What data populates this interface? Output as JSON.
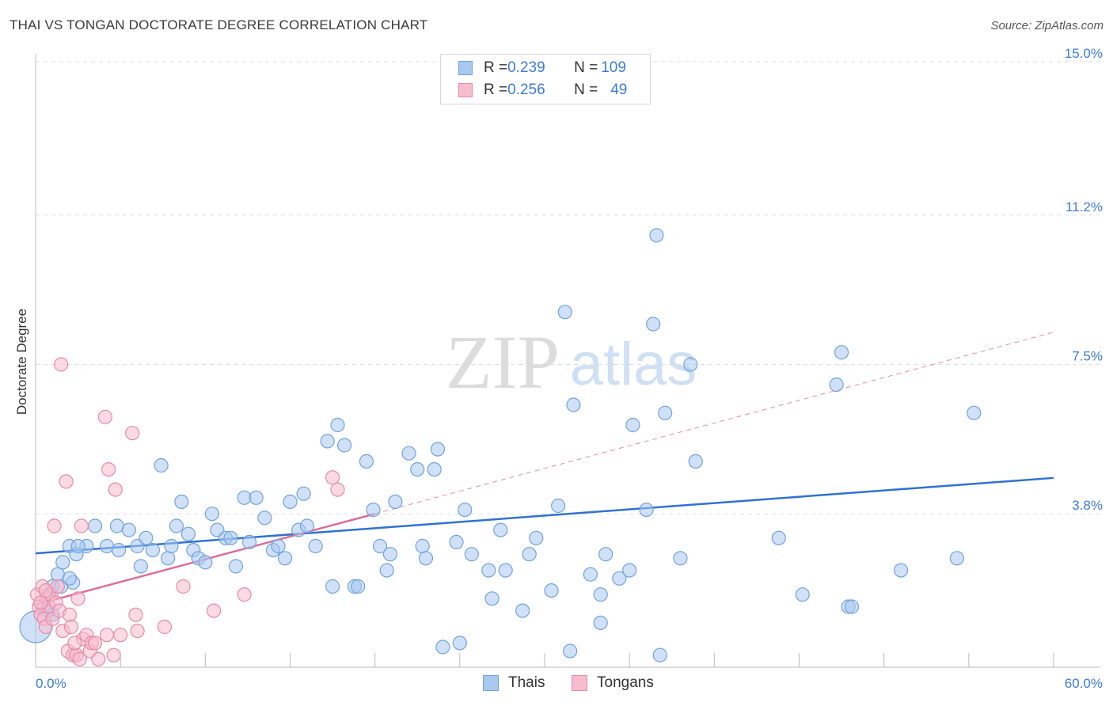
{
  "title": "THAI VS TONGAN DOCTORATE DEGREE CORRELATION CHART",
  "source": "Source: ZipAtlas.com",
  "watermark": {
    "zip": "ZIP",
    "atlas": "atlas"
  },
  "legend_top": [
    {
      "r_label": "R = ",
      "r_value": "0.239",
      "n_label": "N = ",
      "n_value": "109",
      "color": "#a9c8f0",
      "border": "#6fa3e0"
    },
    {
      "r_label": "R = ",
      "r_value": "0.256",
      "n_label": "N = ",
      "n_value": "49",
      "color": "#f7bccd",
      "border": "#e88aa6"
    }
  ],
  "legend_bottom": [
    {
      "label": "Thais",
      "color": "#a9c8f0",
      "border": "#6fa3e0"
    },
    {
      "label": "Tongans",
      "color": "#f7bccd",
      "border": "#e88aa6"
    }
  ],
  "chart_data": {
    "type": "scatter",
    "title": "THAI VS TONGAN DOCTORATE DEGREE CORRELATION CHART",
    "xlabel": "",
    "ylabel": "Doctorate Degree",
    "xlim": [
      0,
      60
    ],
    "ylim": [
      0,
      15
    ],
    "x_tick_labels": [
      "0.0%",
      "60.0%"
    ],
    "y_ticks": [
      3.8,
      7.5,
      11.2,
      15.0
    ],
    "y_tick_labels": [
      "3.8%",
      "7.5%",
      "11.2%",
      "15.0%"
    ],
    "grid": true,
    "legend_position": "top-center",
    "series": [
      {
        "name": "Thais",
        "color": "#6fa3e0",
        "fill": "#a9c8f0",
        "trend": {
          "x": [
            0,
            60
          ],
          "y": [
            2.82,
            4.69
          ]
        },
        "points": [
          [
            0.0,
            1.0
          ],
          [
            0.5,
            1.5
          ],
          [
            0.8,
            1.8
          ],
          [
            1.0,
            2.0
          ],
          [
            1.3,
            2.3
          ],
          [
            1.6,
            2.6
          ],
          [
            2.0,
            3.0
          ],
          [
            2.2,
            2.1
          ],
          [
            2.4,
            2.8
          ],
          [
            3.0,
            3.0
          ],
          [
            3.5,
            3.5
          ],
          [
            4.2,
            3.0
          ],
          [
            4.8,
            3.5
          ],
          [
            4.9,
            2.9
          ],
          [
            5.5,
            3.4
          ],
          [
            6.0,
            3.0
          ],
          [
            6.2,
            2.5
          ],
          [
            6.5,
            3.2
          ],
          [
            6.9,
            2.9
          ],
          [
            7.4,
            5.0
          ],
          [
            7.8,
            2.7
          ],
          [
            8.0,
            3.0
          ],
          [
            8.3,
            3.5
          ],
          [
            8.6,
            4.1
          ],
          [
            9.0,
            3.3
          ],
          [
            9.3,
            2.9
          ],
          [
            9.6,
            2.7
          ],
          [
            10.0,
            2.6
          ],
          [
            10.4,
            3.8
          ],
          [
            10.7,
            3.4
          ],
          [
            11.2,
            3.2
          ],
          [
            11.5,
            3.2
          ],
          [
            11.8,
            2.5
          ],
          [
            12.3,
            4.2
          ],
          [
            12.6,
            3.1
          ],
          [
            13.0,
            4.2
          ],
          [
            13.5,
            3.7
          ],
          [
            14.0,
            2.9
          ],
          [
            14.3,
            3.0
          ],
          [
            14.7,
            2.7
          ],
          [
            15.0,
            4.1
          ],
          [
            15.5,
            3.4
          ],
          [
            15.8,
            4.3
          ],
          [
            16.0,
            3.5
          ],
          [
            16.5,
            3.0
          ],
          [
            17.2,
            5.6
          ],
          [
            17.8,
            6.0
          ],
          [
            18.2,
            5.5
          ],
          [
            17.5,
            2.0
          ],
          [
            18.8,
            2.0
          ],
          [
            19.0,
            2.0
          ],
          [
            19.5,
            5.1
          ],
          [
            19.9,
            3.9
          ],
          [
            20.3,
            3.0
          ],
          [
            20.7,
            2.4
          ],
          [
            20.9,
            2.8
          ],
          [
            21.2,
            4.1
          ],
          [
            22.0,
            5.3
          ],
          [
            22.5,
            4.9
          ],
          [
            22.8,
            3.0
          ],
          [
            23.0,
            2.7
          ],
          [
            23.5,
            4.9
          ],
          [
            23.7,
            5.4
          ],
          [
            24.0,
            0.5
          ],
          [
            24.8,
            3.1
          ],
          [
            25.0,
            0.6
          ],
          [
            25.3,
            3.9
          ],
          [
            25.7,
            2.8
          ],
          [
            26.7,
            2.4
          ],
          [
            26.9,
            1.7
          ],
          [
            27.4,
            3.4
          ],
          [
            27.7,
            2.4
          ],
          [
            28.7,
            1.4
          ],
          [
            29.1,
            2.8
          ],
          [
            29.5,
            3.2
          ],
          [
            30.4,
            1.9
          ],
          [
            30.8,
            4.0
          ],
          [
            31.2,
            8.8
          ],
          [
            31.5,
            0.4
          ],
          [
            31.7,
            6.5
          ],
          [
            32.7,
            2.3
          ],
          [
            33.3,
            1.8
          ],
          [
            33.6,
            2.8
          ],
          [
            33.3,
            1.1
          ],
          [
            34.4,
            2.2
          ],
          [
            35.0,
            2.4
          ],
          [
            35.2,
            6.0
          ],
          [
            36.0,
            3.9
          ],
          [
            36.4,
            8.5
          ],
          [
            36.6,
            10.7
          ],
          [
            36.8,
            0.3
          ],
          [
            37.1,
            6.3
          ],
          [
            38.0,
            2.7
          ],
          [
            38.6,
            7.5
          ],
          [
            38.9,
            5.1
          ],
          [
            43.8,
            3.2
          ],
          [
            45.2,
            1.8
          ],
          [
            47.9,
            1.5
          ],
          [
            48.1,
            1.5
          ],
          [
            47.2,
            7.0
          ],
          [
            47.5,
            7.8
          ],
          [
            51.0,
            2.4
          ],
          [
            54.3,
            2.7
          ],
          [
            55.3,
            6.3
          ],
          [
            1.0,
            1.3
          ],
          [
            1.5,
            2.0
          ],
          [
            2.0,
            2.2
          ],
          [
            2.5,
            3.0
          ],
          [
            0.7,
            1.4
          ]
        ]
      },
      {
        "name": "Tongans",
        "color": "#e88aa6",
        "fill": "#f7bccd",
        "trend": {
          "x": [
            0,
            20
          ],
          "y": [
            1.55,
            3.8
          ]
        },
        "trend_extension": {
          "x": [
            20,
            60
          ],
          "y": [
            3.8,
            8.3
          ]
        },
        "points": [
          [
            0.1,
            1.8
          ],
          [
            0.2,
            1.5
          ],
          [
            0.3,
            1.3
          ],
          [
            0.4,
            2.0
          ],
          [
            0.5,
            1.2
          ],
          [
            0.6,
            1.0
          ],
          [
            0.7,
            1.7
          ],
          [
            0.8,
            1.5
          ],
          [
            0.9,
            1.8
          ],
          [
            1.0,
            1.2
          ],
          [
            1.1,
            3.5
          ],
          [
            1.2,
            1.6
          ],
          [
            1.3,
            2.0
          ],
          [
            1.4,
            1.4
          ],
          [
            1.5,
            7.5
          ],
          [
            1.6,
            0.9
          ],
          [
            1.8,
            4.6
          ],
          [
            1.9,
            0.4
          ],
          [
            2.0,
            1.3
          ],
          [
            2.1,
            1.0
          ],
          [
            2.2,
            0.3
          ],
          [
            2.4,
            0.3
          ],
          [
            2.5,
            1.7
          ],
          [
            2.6,
            0.2
          ],
          [
            2.7,
            3.5
          ],
          [
            2.8,
            0.7
          ],
          [
            3.0,
            0.8
          ],
          [
            3.2,
            0.4
          ],
          [
            3.3,
            0.6
          ],
          [
            3.5,
            0.6
          ],
          [
            3.7,
            0.2
          ],
          [
            4.1,
            6.2
          ],
          [
            4.2,
            0.8
          ],
          [
            4.3,
            4.9
          ],
          [
            4.6,
            0.3
          ],
          [
            4.7,
            4.4
          ],
          [
            5.0,
            0.8
          ],
          [
            5.7,
            5.8
          ],
          [
            5.9,
            1.3
          ],
          [
            6.0,
            0.9
          ],
          [
            7.6,
            1.0
          ],
          [
            8.7,
            2.0
          ],
          [
            10.5,
            1.4
          ],
          [
            12.3,
            1.8
          ],
          [
            17.5,
            4.7
          ],
          [
            17.8,
            4.4
          ],
          [
            0.3,
            1.6
          ],
          [
            0.6,
            1.9
          ],
          [
            2.3,
            0.6
          ]
        ]
      }
    ]
  }
}
